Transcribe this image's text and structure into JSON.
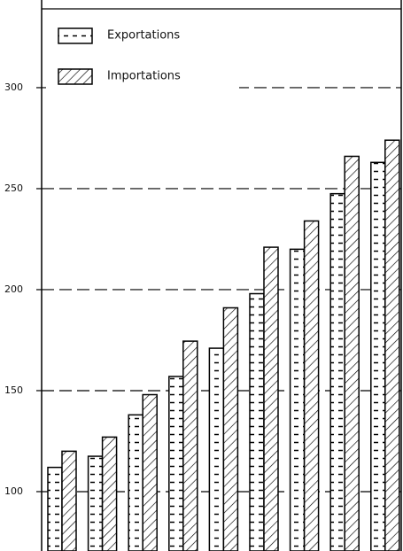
{
  "chart_data": {
    "type": "bar",
    "categories": [
      null,
      null,
      null,
      null,
      null,
      null,
      null,
      null,
      null
    ],
    "series": [
      {
        "name": "Exportations",
        "color": "#000000",
        "pattern": "dashes",
        "values": [
          112,
          117.5,
          138,
          157,
          171,
          198,
          220,
          247.5,
          263
        ]
      },
      {
        "name": "Importations",
        "color": "#000000",
        "pattern": "hatch",
        "values": [
          120,
          127,
          148,
          174.5,
          191,
          221,
          234,
          266,
          274
        ]
      }
    ],
    "ylim": [
      70.6,
      343.4
    ],
    "yticks": [
      100,
      150,
      200,
      250,
      300
    ],
    "grid": true
  }
}
